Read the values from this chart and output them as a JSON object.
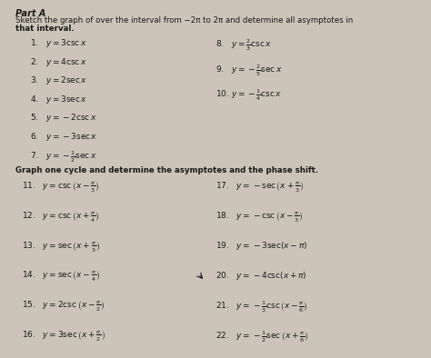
{
  "background_color": "#ccc4b8",
  "text_color": "#1a1a1a",
  "title": "Part A",
  "subtitle1": "Sketch the graph of over the interval from −2π to 2π and determine all asymptotes in",
  "subtitle2": "that interval.",
  "section2": "Graph one cycle and determine the asymptotes and the phase shift.",
  "col1": [
    "1.   $y = 3\\csc x$",
    "2.   $y = 4\\csc x$",
    "3.   $y = 2\\sec x$",
    "4.   $y = 3\\sec x$",
    "5.   $y = -2\\csc x$",
    "6.   $y = -3\\sec x$"
  ],
  "col1_frac": "7.   $y = -\\frac{1}{2}\\sec x$",
  "col2": [
    "8.   $y = \\frac{2}{3}\\csc x$",
    "9.   $y = -\\frac{2}{5}\\sec x$",
    "10. $y = -\\frac{1}{4}\\csc x$"
  ],
  "col3": [
    "11.   $y = \\csc\\left(x - \\frac{\\pi}{3}\\right)$",
    "12.   $y = \\csc\\left(x + \\frac{\\pi}{4}\\right)$",
    "13.   $y = \\sec\\left(x + \\frac{\\pi}{3}\\right)$",
    "14.   $y = \\sec\\left(x - \\frac{\\pi}{4}\\right)$",
    "15.   $y = 2\\csc\\left(x - \\frac{\\pi}{2}\\right)$",
    "16.   $y = 3\\sec\\left(x + \\frac{\\pi}{2}\\right)$"
  ],
  "col4": [
    "17.   $y = -\\sec\\left(x + \\frac{\\pi}{3}\\right)$",
    "18.   $y = -\\csc\\left(x - \\frac{\\pi}{3}\\right)$",
    "19.   $y = -3\\sec(x - \\pi)$",
    "20.   $y = -4\\csc(x + \\pi)$",
    "21.   $y = -\\frac{1}{3}\\csc\\left(x - \\frac{\\pi}{6}\\right)$",
    "22.   $y = -\\frac{1}{2}\\sec\\left(x + \\frac{\\pi}{6}\\right)$"
  ]
}
